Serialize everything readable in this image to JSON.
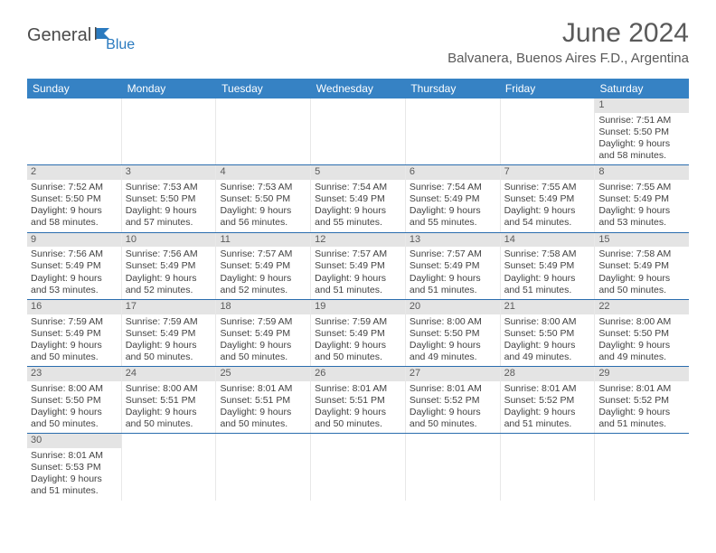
{
  "brand": {
    "name_part1": "General",
    "name_part2": "Blue"
  },
  "title": "June 2024",
  "location": "Balvanera, Buenos Aires F.D., Argentina",
  "colors": {
    "header_bg": "#3682c4",
    "header_text": "#ffffff",
    "row_border": "#2a6dae",
    "daynum_bg": "#e4e4e4",
    "text": "#424242",
    "title_text": "#5a5a5a",
    "logo_gray": "#4a4a4a",
    "logo_blue": "#2a7abf"
  },
  "day_names": [
    "Sunday",
    "Monday",
    "Tuesday",
    "Wednesday",
    "Thursday",
    "Friday",
    "Saturday"
  ],
  "weeks": [
    [
      {
        "day": "",
        "sunrise": "",
        "sunset": "",
        "daylight": ""
      },
      {
        "day": "",
        "sunrise": "",
        "sunset": "",
        "daylight": ""
      },
      {
        "day": "",
        "sunrise": "",
        "sunset": "",
        "daylight": ""
      },
      {
        "day": "",
        "sunrise": "",
        "sunset": "",
        "daylight": ""
      },
      {
        "day": "",
        "sunrise": "",
        "sunset": "",
        "daylight": ""
      },
      {
        "day": "",
        "sunrise": "",
        "sunset": "",
        "daylight": ""
      },
      {
        "day": "1",
        "sunrise": "Sunrise: 7:51 AM",
        "sunset": "Sunset: 5:50 PM",
        "daylight": "Daylight: 9 hours and 58 minutes."
      }
    ],
    [
      {
        "day": "2",
        "sunrise": "Sunrise: 7:52 AM",
        "sunset": "Sunset: 5:50 PM",
        "daylight": "Daylight: 9 hours and 58 minutes."
      },
      {
        "day": "3",
        "sunrise": "Sunrise: 7:53 AM",
        "sunset": "Sunset: 5:50 PM",
        "daylight": "Daylight: 9 hours and 57 minutes."
      },
      {
        "day": "4",
        "sunrise": "Sunrise: 7:53 AM",
        "sunset": "Sunset: 5:50 PM",
        "daylight": "Daylight: 9 hours and 56 minutes."
      },
      {
        "day": "5",
        "sunrise": "Sunrise: 7:54 AM",
        "sunset": "Sunset: 5:49 PM",
        "daylight": "Daylight: 9 hours and 55 minutes."
      },
      {
        "day": "6",
        "sunrise": "Sunrise: 7:54 AM",
        "sunset": "Sunset: 5:49 PM",
        "daylight": "Daylight: 9 hours and 55 minutes."
      },
      {
        "day": "7",
        "sunrise": "Sunrise: 7:55 AM",
        "sunset": "Sunset: 5:49 PM",
        "daylight": "Daylight: 9 hours and 54 minutes."
      },
      {
        "day": "8",
        "sunrise": "Sunrise: 7:55 AM",
        "sunset": "Sunset: 5:49 PM",
        "daylight": "Daylight: 9 hours and 53 minutes."
      }
    ],
    [
      {
        "day": "9",
        "sunrise": "Sunrise: 7:56 AM",
        "sunset": "Sunset: 5:49 PM",
        "daylight": "Daylight: 9 hours and 53 minutes."
      },
      {
        "day": "10",
        "sunrise": "Sunrise: 7:56 AM",
        "sunset": "Sunset: 5:49 PM",
        "daylight": "Daylight: 9 hours and 52 minutes."
      },
      {
        "day": "11",
        "sunrise": "Sunrise: 7:57 AM",
        "sunset": "Sunset: 5:49 PM",
        "daylight": "Daylight: 9 hours and 52 minutes."
      },
      {
        "day": "12",
        "sunrise": "Sunrise: 7:57 AM",
        "sunset": "Sunset: 5:49 PM",
        "daylight": "Daylight: 9 hours and 51 minutes."
      },
      {
        "day": "13",
        "sunrise": "Sunrise: 7:57 AM",
        "sunset": "Sunset: 5:49 PM",
        "daylight": "Daylight: 9 hours and 51 minutes."
      },
      {
        "day": "14",
        "sunrise": "Sunrise: 7:58 AM",
        "sunset": "Sunset: 5:49 PM",
        "daylight": "Daylight: 9 hours and 51 minutes."
      },
      {
        "day": "15",
        "sunrise": "Sunrise: 7:58 AM",
        "sunset": "Sunset: 5:49 PM",
        "daylight": "Daylight: 9 hours and 50 minutes."
      }
    ],
    [
      {
        "day": "16",
        "sunrise": "Sunrise: 7:59 AM",
        "sunset": "Sunset: 5:49 PM",
        "daylight": "Daylight: 9 hours and 50 minutes."
      },
      {
        "day": "17",
        "sunrise": "Sunrise: 7:59 AM",
        "sunset": "Sunset: 5:49 PM",
        "daylight": "Daylight: 9 hours and 50 minutes."
      },
      {
        "day": "18",
        "sunrise": "Sunrise: 7:59 AM",
        "sunset": "Sunset: 5:49 PM",
        "daylight": "Daylight: 9 hours and 50 minutes."
      },
      {
        "day": "19",
        "sunrise": "Sunrise: 7:59 AM",
        "sunset": "Sunset: 5:49 PM",
        "daylight": "Daylight: 9 hours and 50 minutes."
      },
      {
        "day": "20",
        "sunrise": "Sunrise: 8:00 AM",
        "sunset": "Sunset: 5:50 PM",
        "daylight": "Daylight: 9 hours and 49 minutes."
      },
      {
        "day": "21",
        "sunrise": "Sunrise: 8:00 AM",
        "sunset": "Sunset: 5:50 PM",
        "daylight": "Daylight: 9 hours and 49 minutes."
      },
      {
        "day": "22",
        "sunrise": "Sunrise: 8:00 AM",
        "sunset": "Sunset: 5:50 PM",
        "daylight": "Daylight: 9 hours and 49 minutes."
      }
    ],
    [
      {
        "day": "23",
        "sunrise": "Sunrise: 8:00 AM",
        "sunset": "Sunset: 5:50 PM",
        "daylight": "Daylight: 9 hours and 50 minutes."
      },
      {
        "day": "24",
        "sunrise": "Sunrise: 8:00 AM",
        "sunset": "Sunset: 5:51 PM",
        "daylight": "Daylight: 9 hours and 50 minutes."
      },
      {
        "day": "25",
        "sunrise": "Sunrise: 8:01 AM",
        "sunset": "Sunset: 5:51 PM",
        "daylight": "Daylight: 9 hours and 50 minutes."
      },
      {
        "day": "26",
        "sunrise": "Sunrise: 8:01 AM",
        "sunset": "Sunset: 5:51 PM",
        "daylight": "Daylight: 9 hours and 50 minutes."
      },
      {
        "day": "27",
        "sunrise": "Sunrise: 8:01 AM",
        "sunset": "Sunset: 5:52 PM",
        "daylight": "Daylight: 9 hours and 50 minutes."
      },
      {
        "day": "28",
        "sunrise": "Sunrise: 8:01 AM",
        "sunset": "Sunset: 5:52 PM",
        "daylight": "Daylight: 9 hours and 51 minutes."
      },
      {
        "day": "29",
        "sunrise": "Sunrise: 8:01 AM",
        "sunset": "Sunset: 5:52 PM",
        "daylight": "Daylight: 9 hours and 51 minutes."
      }
    ],
    [
      {
        "day": "30",
        "sunrise": "Sunrise: 8:01 AM",
        "sunset": "Sunset: 5:53 PM",
        "daylight": "Daylight: 9 hours and 51 minutes."
      },
      {
        "day": "",
        "sunrise": "",
        "sunset": "",
        "daylight": ""
      },
      {
        "day": "",
        "sunrise": "",
        "sunset": "",
        "daylight": ""
      },
      {
        "day": "",
        "sunrise": "",
        "sunset": "",
        "daylight": ""
      },
      {
        "day": "",
        "sunrise": "",
        "sunset": "",
        "daylight": ""
      },
      {
        "day": "",
        "sunrise": "",
        "sunset": "",
        "daylight": ""
      },
      {
        "day": "",
        "sunrise": "",
        "sunset": "",
        "daylight": ""
      }
    ]
  ]
}
